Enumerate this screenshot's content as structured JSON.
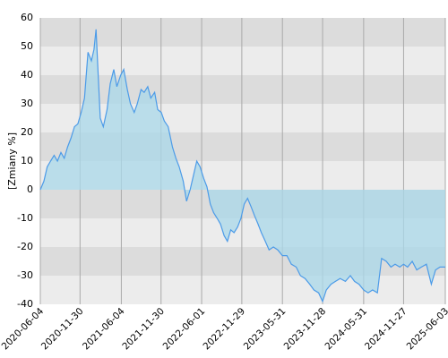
{
  "chart_data": {
    "type": "area",
    "y_label": "[Zmiany %]",
    "x": [
      "2020-06-04",
      "2020-06-20",
      "2020-07-05",
      "2020-07-20",
      "2020-08-05",
      "2020-08-20",
      "2020-09-05",
      "2020-09-20",
      "2020-10-05",
      "2020-10-20",
      "2020-11-05",
      "2020-11-20",
      "2020-12-05",
      "2020-12-20",
      "2021-01-05",
      "2021-01-20",
      "2021-02-01",
      "2021-02-10",
      "2021-02-20",
      "2021-03-01",
      "2021-03-15",
      "2021-04-01",
      "2021-04-15",
      "2021-05-01",
      "2021-05-15",
      "2021-06-01",
      "2021-06-15",
      "2021-07-01",
      "2021-07-15",
      "2021-08-01",
      "2021-08-15",
      "2021-09-01",
      "2021-09-15",
      "2021-10-01",
      "2021-10-15",
      "2021-11-01",
      "2021-11-15",
      "2021-12-01",
      "2021-12-15",
      "2022-01-01",
      "2022-01-20",
      "2022-02-05",
      "2022-02-20",
      "2022-03-10",
      "2022-03-25",
      "2022-04-10",
      "2022-04-25",
      "2022-05-10",
      "2022-05-25",
      "2022-06-10",
      "2022-06-25",
      "2022-07-10",
      "2022-07-25",
      "2022-08-10",
      "2022-08-25",
      "2022-09-10",
      "2022-09-25",
      "2022-10-10",
      "2022-10-25",
      "2022-11-10",
      "2022-11-25",
      "2022-12-10",
      "2022-12-25",
      "2023-01-10",
      "2023-01-25",
      "2023-02-10",
      "2023-02-25",
      "2023-03-15",
      "2023-04-01",
      "2023-04-20",
      "2023-05-10",
      "2023-05-31",
      "2023-06-20",
      "2023-07-10",
      "2023-08-01",
      "2023-08-20",
      "2023-09-10",
      "2023-10-01",
      "2023-10-20",
      "2023-11-10",
      "2023-11-28",
      "2023-12-15",
      "2024-01-05",
      "2024-01-25",
      "2024-02-15",
      "2024-03-10",
      "2024-04-01",
      "2024-04-20",
      "2024-05-10",
      "2024-05-31",
      "2024-06-20",
      "2024-07-10",
      "2024-08-01",
      "2024-08-20",
      "2024-09-10",
      "2024-10-01",
      "2024-10-20",
      "2024-11-10",
      "2024-11-27",
      "2024-12-15",
      "2025-01-05",
      "2025-01-25",
      "2025-02-15",
      "2025-03-10",
      "2025-04-01",
      "2025-04-20",
      "2025-05-10",
      "2025-06-03"
    ],
    "values": [
      0,
      3,
      8,
      10,
      12,
      10,
      13,
      11,
      15,
      18,
      22,
      23,
      27,
      32,
      48,
      45,
      49,
      56,
      40,
      25,
      22,
      28,
      37,
      42,
      36,
      40,
      42,
      35,
      30,
      27,
      30,
      35,
      34,
      36,
      32,
      34,
      28,
      27,
      24,
      22,
      15,
      11,
      8,
      3,
      -4,
      0,
      5,
      10,
      8,
      4,
      1,
      -5,
      -8,
      -10,
      -12,
      -16,
      -18,
      -14,
      -15,
      -13,
      -10,
      -5,
      -3,
      -6,
      -9,
      -12,
      -15,
      -18,
      -21,
      -20,
      -21,
      -23,
      -23,
      -26,
      -27,
      -30,
      -31,
      -33,
      -35,
      -36,
      -39,
      -35,
      -33,
      -32,
      -31,
      -32,
      -30,
      -32,
      -33,
      -35,
      -36,
      -35,
      -36,
      -24,
      -25,
      -27,
      -26,
      -27,
      -26,
      -27,
      -25,
      -28,
      -27,
      -26,
      -33,
      -28,
      -27,
      -27
    ],
    "color": "#4c9be8",
    "fill_color": "#a9d8ea",
    "xlim": [
      "2020-06-04",
      "2025-06-03"
    ],
    "xticks": [
      "2020-06-04",
      "2020-11-30",
      "2021-06-04",
      "2021-11-30",
      "2022-06-01",
      "2022-11-29",
      "2023-05-31",
      "2023-11-28",
      "2024-05-31",
      "2024-11-27",
      "2025-06-03"
    ],
    "ylim": [
      -40,
      60
    ],
    "yticks": [
      -40,
      -30,
      -20,
      -10,
      0,
      10,
      20,
      30,
      40,
      50,
      60
    ],
    "grid": true
  }
}
